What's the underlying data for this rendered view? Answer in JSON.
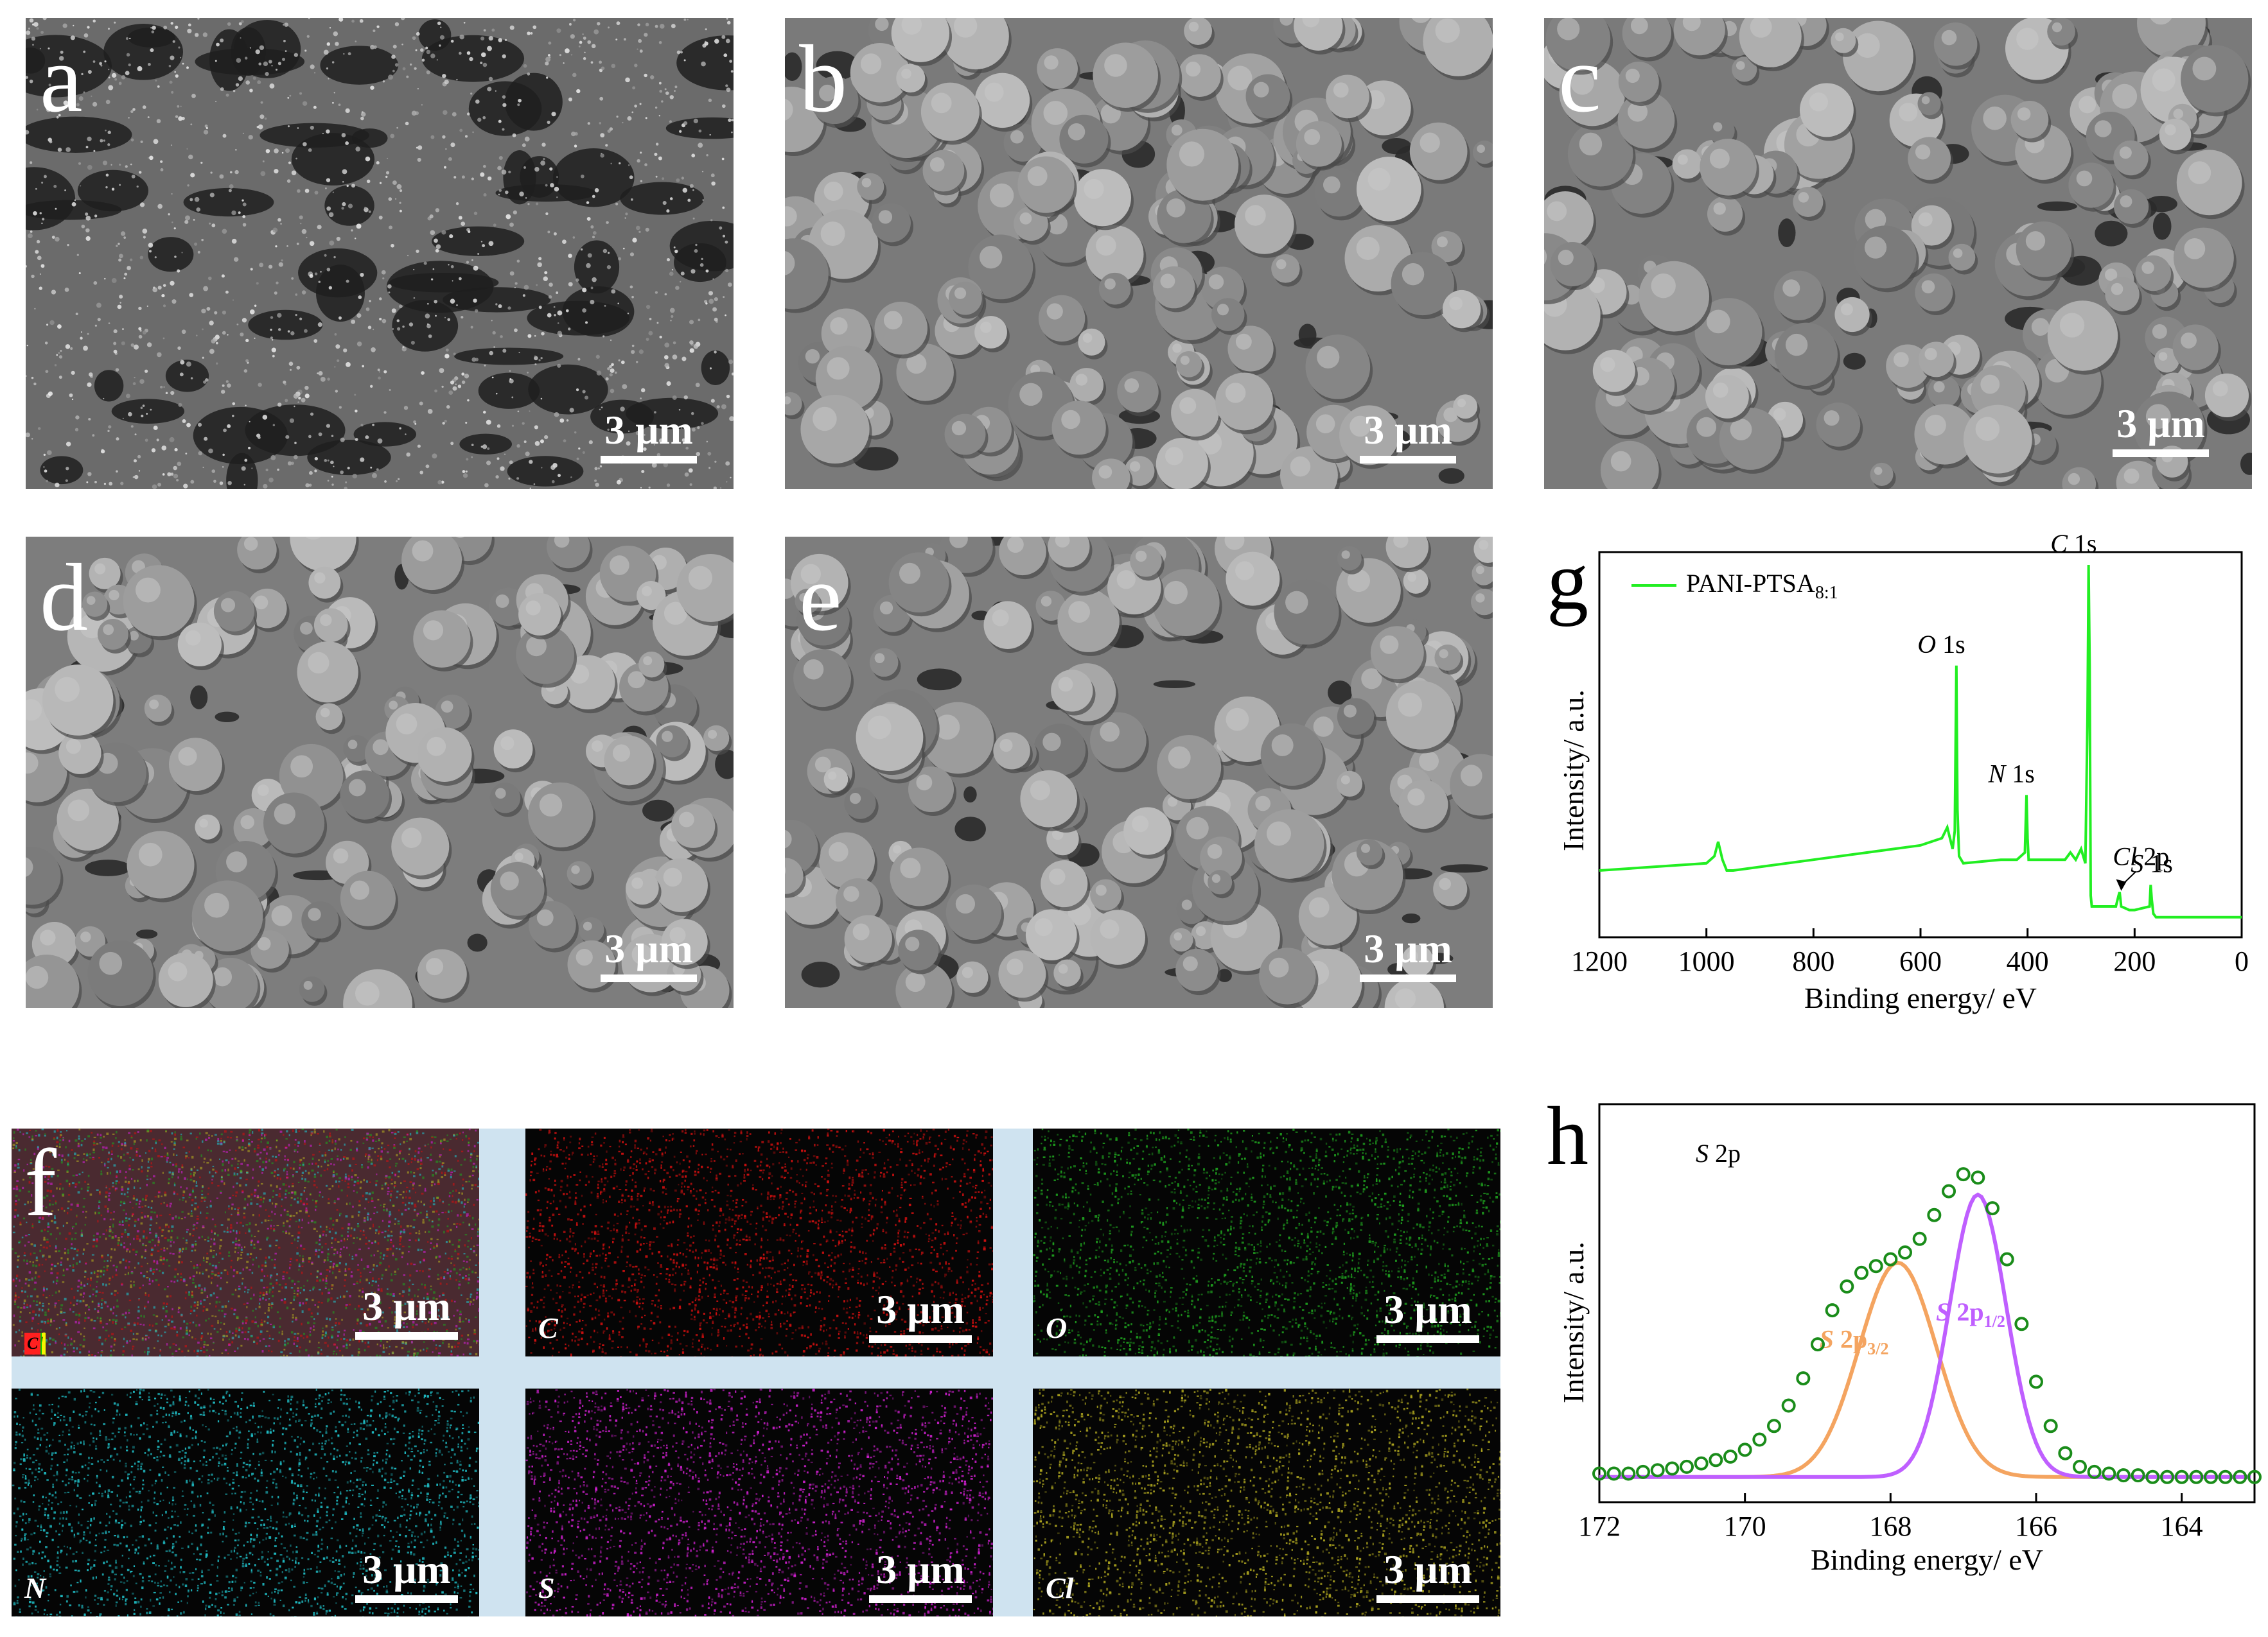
{
  "panels": {
    "a": {
      "label": "a",
      "scale": "3 μm"
    },
    "b": {
      "label": "b",
      "scale": "3 μm"
    },
    "c": {
      "label": "c",
      "scale": "3 μm"
    },
    "d": {
      "label": "d",
      "scale": "3 μm"
    },
    "e": {
      "label": "e",
      "scale": "3 μm"
    },
    "f": {
      "label": "f",
      "scale": "3 μm",
      "legend": [
        "Cl",
        "S",
        "N",
        "O",
        "C"
      ],
      "legend_colors": [
        "#f5f500",
        "#ff40ff",
        "#00d8e8",
        "#00c000",
        "#ff2020"
      ],
      "maps": [
        {
          "element": "C",
          "scale": "3 μm",
          "color": "#d01010"
        },
        {
          "element": "O",
          "scale": "3 μm",
          "color": "#1fa01f"
        },
        {
          "element": "N",
          "scale": "3 μm",
          "color": "#20c0c8"
        },
        {
          "element": "S",
          "scale": "3 μm",
          "color": "#d020d0"
        },
        {
          "element": "Cl",
          "scale": "3 μm",
          "color": "#b0a820"
        }
      ]
    },
    "g": {
      "label": "g"
    },
    "h": {
      "label": "h"
    }
  },
  "chart_data": [
    {
      "id": "g",
      "type": "line",
      "title": "",
      "xlabel": "Binding energy/ eV",
      "ylabel": "Intensity/ a.u.",
      "xlim": [
        1200,
        0
      ],
      "x_reversed": true,
      "xticks": [
        1200,
        1000,
        800,
        600,
        400,
        200,
        0
      ],
      "color": "#22ee22",
      "series": [
        {
          "name": "PANI-PTSA",
          "name_subscript": "8:1",
          "x": [
            1200,
            1100,
            1000,
            985,
            978,
            970,
            962,
            950,
            900,
            800,
            700,
            600,
            560,
            550,
            540,
            536,
            533,
            531,
            528,
            520,
            450,
            420,
            405,
            402,
            400,
            398,
            390,
            330,
            320,
            310,
            300,
            292,
            288,
            286,
            284,
            282,
            280,
            275,
            250,
            235,
            230,
            228,
            225,
            210,
            200,
            172,
            170,
            168,
            165,
            160,
            100,
            50,
            10,
            0
          ],
          "y": [
            0.15,
            0.16,
            0.17,
            0.19,
            0.23,
            0.18,
            0.15,
            0.15,
            0.16,
            0.18,
            0.2,
            0.22,
            0.24,
            0.27,
            0.21,
            0.26,
            0.72,
            0.32,
            0.19,
            0.17,
            0.18,
            0.18,
            0.2,
            0.36,
            0.24,
            0.18,
            0.18,
            0.18,
            0.2,
            0.18,
            0.21,
            0.17,
            0.58,
            1.0,
            0.72,
            0.08,
            0.05,
            0.05,
            0.05,
            0.05,
            0.08,
            0.09,
            0.05,
            0.04,
            0.04,
            0.05,
            0.11,
            0.07,
            0.03,
            0.02,
            0.02,
            0.02,
            0.02,
            0.02
          ]
        }
      ],
      "annotations": [
        {
          "element": "C",
          "rest": " 1s",
          "x": 284
        },
        {
          "element": "O",
          "rest": " 1s",
          "x": 531
        },
        {
          "element": "N",
          "rest": " 1s",
          "x": 400
        },
        {
          "element": "Cl",
          "rest": " 2p",
          "x": 200
        },
        {
          "element": "S",
          "rest": " 1s",
          "x": 168
        }
      ]
    },
    {
      "id": "h",
      "type": "line",
      "title": "",
      "label_element": "S",
      "label_rest": " 2p",
      "xlabel": "Binding energy/ eV",
      "ylabel": "Intensity/ a.u.",
      "xlim": [
        172,
        163
      ],
      "x_reversed": true,
      "xticks": [
        172,
        170,
        168,
        166,
        164
      ],
      "series": [
        {
          "name": "S 2p3/2",
          "name_main": "S 2p",
          "name_sub": "3/2",
          "color": "#f4a460",
          "center": 167.9,
          "amp": 0.63,
          "width": 0.75,
          "baseline": 0.04
        },
        {
          "name": "S 2p1/2",
          "name_main": "S 2p",
          "name_sub": "1/2",
          "color": "#bf5fff",
          "center": 166.8,
          "amp": 0.83,
          "width": 0.55,
          "baseline": 0.04
        },
        {
          "name": "data",
          "color": "#1a8c1a",
          "marker": "circle",
          "x": [
            172,
            171.8,
            171.6,
            171.4,
            171.2,
            171,
            170.8,
            170.6,
            170.4,
            170.2,
            170,
            169.8,
            169.6,
            169.4,
            169.2,
            169,
            168.8,
            168.6,
            168.4,
            168.2,
            168,
            167.8,
            167.6,
            167.4,
            167.2,
            167,
            166.8,
            166.6,
            166.4,
            166.2,
            166,
            165.8,
            165.6,
            165.4,
            165.2,
            165,
            164.8,
            164.6,
            164.4,
            164.2,
            164,
            163.8,
            163.6,
            163.4,
            163.2,
            163
          ],
          "y": [
            0.05,
            0.05,
            0.05,
            0.055,
            0.06,
            0.065,
            0.07,
            0.08,
            0.09,
            0.1,
            0.12,
            0.15,
            0.19,
            0.25,
            0.33,
            0.43,
            0.53,
            0.6,
            0.64,
            0.66,
            0.68,
            0.7,
            0.74,
            0.81,
            0.88,
            0.93,
            0.92,
            0.83,
            0.68,
            0.49,
            0.32,
            0.19,
            0.11,
            0.07,
            0.055,
            0.05,
            0.045,
            0.045,
            0.04,
            0.04,
            0.04,
            0.04,
            0.04,
            0.04,
            0.04,
            0.04
          ]
        }
      ]
    }
  ]
}
